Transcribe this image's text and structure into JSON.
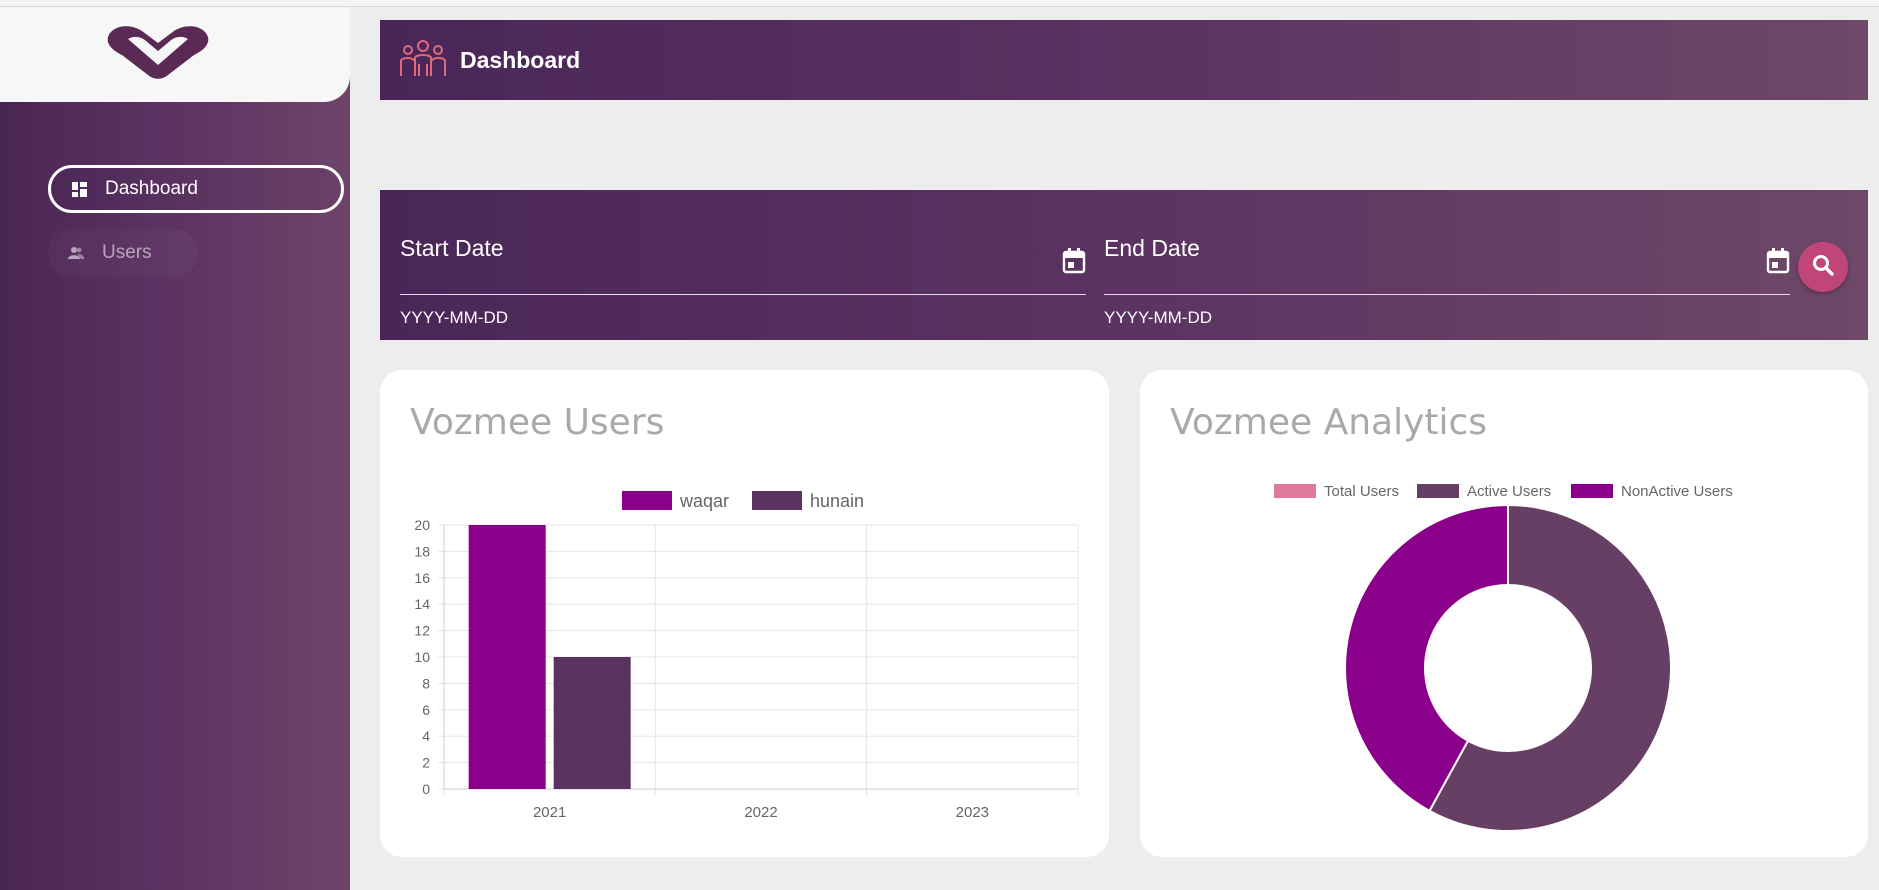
{
  "sidebar": {
    "items": [
      {
        "label": "Dashboard",
        "icon": "dashboard-icon",
        "active": true
      },
      {
        "label": "Users",
        "icon": "users-icon",
        "active": false
      }
    ]
  },
  "header": {
    "title": "Dashboard",
    "icon": "team-icon"
  },
  "filter": {
    "start": {
      "label": "Start Date",
      "hint": "YYYY-MM-DD"
    },
    "end": {
      "label": "End Date",
      "hint": "YYYY-MM-DD"
    },
    "search_icon": "search-icon"
  },
  "colors": {
    "brand": "#5a3262",
    "waqar": "#8b008b",
    "hunain": "#5a3360",
    "total_users": "#e07a9a",
    "active_users": "#683f64",
    "nonactive_users": "#8b008b",
    "search_button": "#c0467a"
  },
  "chart_data": [
    {
      "type": "bar",
      "title": "Vozmee Users",
      "categories": [
        "2021",
        "2022",
        "2023"
      ],
      "series": [
        {
          "name": "waqar",
          "values": [
            20,
            0,
            0
          ]
        },
        {
          "name": "hunain",
          "values": [
            10,
            0,
            0
          ]
        }
      ],
      "ylim": [
        0,
        20
      ],
      "yticks": [
        0,
        2,
        4,
        6,
        8,
        10,
        12,
        14,
        16,
        18,
        20
      ],
      "legend": "top-center",
      "grid": true
    },
    {
      "type": "pie",
      "title": "Vozmee Analytics",
      "labels": [
        "Total Users",
        "Active Users",
        "NonActive Users"
      ],
      "values": [
        0,
        58,
        42
      ],
      "donut": true,
      "legend": "top-center"
    }
  ]
}
